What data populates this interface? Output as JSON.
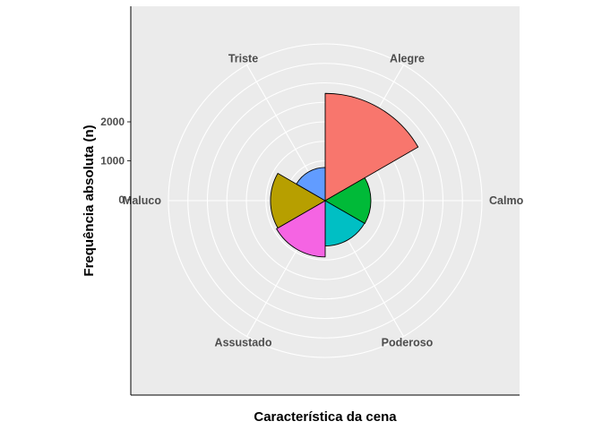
{
  "chart_data": {
    "type": "polar-bar",
    "title": "",
    "xlabel": "Característica da cena",
    "ylabel": "Frequência absoluta (n)",
    "categories": [
      "Alegre",
      "Calmo",
      "Poderoso",
      "Assustado",
      "Maluco",
      "Triste"
    ],
    "values": [
      2730,
      1150,
      1140,
      1420,
      1380,
      830
    ],
    "colors": [
      "#F8766D",
      "#00BA38",
      "#00BFC4",
      "#F564E3",
      "#B79F00",
      "#619CFF"
    ],
    "y_ticks": [
      0,
      1000,
      2000
    ],
    "y_tick_labels": [
      "0",
      "1000",
      "2000"
    ],
    "ylim": [
      0,
      4000
    ],
    "start_angle_deg": 0,
    "direction": "clockwise",
    "grid": true
  }
}
